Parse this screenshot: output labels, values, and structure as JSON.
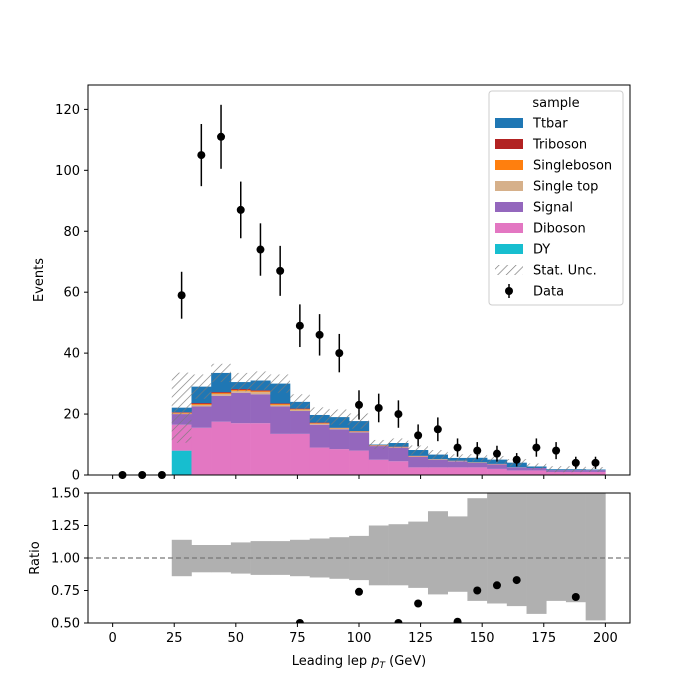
{
  "chart_data": [
    {
      "type": "bar",
      "panel": "main",
      "stacked": true,
      "histogram": true,
      "xlabel": "",
      "ylabel": "Events",
      "xlim": [
        -10,
        210
      ],
      "ylim": [
        0,
        128
      ],
      "yticks": [
        0,
        20,
        40,
        60,
        80,
        100,
        120
      ],
      "bin_edges": [
        24,
        32,
        40,
        48,
        56,
        64,
        72,
        80,
        88,
        96,
        104,
        112,
        120,
        128,
        136,
        144,
        152,
        160,
        168,
        176,
        184,
        192,
        200
      ],
      "series": [
        {
          "name": "DY",
          "color": "#17becf",
          "values": [
            8,
            0,
            0,
            0,
            0,
            0,
            0,
            0,
            0,
            0,
            0,
            0,
            0,
            0,
            0,
            0,
            0,
            0,
            0,
            0,
            0,
            0
          ]
        },
        {
          "name": "Diboson",
          "color": "#e377c2",
          "values": [
            8.5,
            15.5,
            17.5,
            17,
            17,
            13.5,
            13.5,
            9,
            8.5,
            8,
            5,
            4.5,
            2.5,
            2.5,
            2.5,
            2.5,
            2,
            1.5,
            1.5,
            1,
            1,
            1
          ]
        },
        {
          "name": "Signal",
          "color": "#9467bd",
          "values": [
            3.5,
            7,
            8.5,
            10,
            9.5,
            9,
            7.5,
            7.5,
            6.5,
            6,
            4.5,
            4.5,
            3.5,
            2.5,
            2,
            1.5,
            1.5,
            1,
            0.8,
            0.6,
            0.6,
            0.6
          ]
        },
        {
          "name": "Single top",
          "color": "#d6b08a",
          "values": [
            0.2,
            0.5,
            0.6,
            0.6,
            0.7,
            0.5,
            0.4,
            0.3,
            0.3,
            0.2,
            0.1,
            0.1,
            0.1,
            0.1,
            0.1,
            0.05,
            0.05,
            0.05,
            0,
            0,
            0,
            0
          ]
        },
        {
          "name": "Singleboson",
          "color": "#ff7f0e",
          "values": [
            0.2,
            0.3,
            0.3,
            0.3,
            0.3,
            0.3,
            0.2,
            0.2,
            0.1,
            0.1,
            0.1,
            0.1,
            0.1,
            0.05,
            0.05,
            0.05,
            0.05,
            0,
            0,
            0,
            0,
            0
          ]
        },
        {
          "name": "Triboson",
          "color": "#b22222",
          "values": [
            0.2,
            0.3,
            0.3,
            0.3,
            0.3,
            0.2,
            0.2,
            0.2,
            0.1,
            0.1,
            0.1,
            0.1,
            0.1,
            0.05,
            0.05,
            0.05,
            0.05,
            0,
            0,
            0,
            0,
            0
          ]
        },
        {
          "name": "Ttbar",
          "color": "#1f77b4",
          "values": [
            1.5,
            5.4,
            6.3,
            2.3,
            3.2,
            6.5,
            2.2,
            2.5,
            3.5,
            3.3,
            0.2,
            1.2,
            1.9,
            1.5,
            0.9,
            1.5,
            1.4,
            1.5,
            0.5,
            0.3,
            0.3,
            0.2
          ]
        }
      ],
      "stat_unc": {
        "name": "Stat. Unc.",
        "half_width": [
          11.5,
          4,
          3,
          3,
          3,
          3,
          2.5,
          2.5,
          2.5,
          2.5,
          1.5,
          1.5,
          1.5,
          1.5,
          1.2,
          1.2,
          1.2,
          1.2,
          1,
          1,
          1,
          0.8
        ]
      },
      "data": {
        "name": "Data",
        "x": [
          4,
          12,
          20,
          28,
          36,
          44,
          52,
          60,
          68,
          76,
          84,
          92,
          100,
          108,
          116,
          124,
          132,
          140,
          148,
          156,
          164,
          172,
          180,
          188,
          196
        ],
        "y": [
          0,
          0,
          0,
          59,
          105,
          111,
          87,
          74,
          67,
          49,
          46,
          40,
          23,
          22,
          20,
          13,
          15,
          9,
          8,
          7,
          5,
          9,
          8,
          4,
          4
        ],
        "err": [
          0,
          0,
          0,
          7.7,
          10.2,
          10.5,
          9.3,
          8.6,
          8.2,
          7,
          6.8,
          6.3,
          4.8,
          4.7,
          4.5,
          3.6,
          3.9,
          3,
          2.8,
          2.6,
          2.2,
          3,
          2.8,
          2,
          2
        ]
      },
      "legend": {
        "title": "sample",
        "placement": "top-right"
      }
    },
    {
      "type": "bar",
      "panel": "ratio",
      "xlabel": "Leading lep $p_T$ (GeV)",
      "ylabel": "Ratio",
      "xlim": [
        -10,
        210
      ],
      "ylim": [
        0.5,
        1.5
      ],
      "yticks": [
        "0.50",
        "0.75",
        "1.00",
        "1.25",
        "1.50"
      ],
      "xticks": [
        0,
        25,
        50,
        75,
        100,
        125,
        150,
        175,
        200
      ],
      "reference_line": 1.0,
      "band_color": "#b0b0b0",
      "bin_edges": [
        24,
        32,
        40,
        48,
        56,
        64,
        72,
        80,
        88,
        96,
        104,
        112,
        120,
        128,
        136,
        144,
        152,
        160,
        168,
        176,
        184,
        192,
        200
      ],
      "band_low": [
        0.86,
        0.89,
        0.89,
        0.88,
        0.87,
        0.87,
        0.86,
        0.85,
        0.84,
        0.83,
        0.79,
        0.79,
        0.77,
        0.72,
        0.74,
        0.67,
        0.65,
        0.63,
        0.57,
        0.67,
        0.66,
        0.52
      ],
      "band_high": [
        1.14,
        1.1,
        1.1,
        1.12,
        1.13,
        1.13,
        1.14,
        1.15,
        1.16,
        1.17,
        1.25,
        1.26,
        1.28,
        1.36,
        1.32,
        1.46,
        1.5,
        1.5,
        1.5,
        1.5,
        1.5,
        1.5
      ],
      "points": {
        "x": [
          76,
          100,
          116,
          124,
          140,
          148,
          156,
          164,
          188
        ],
        "y": [
          0.5,
          0.74,
          0.5,
          0.65,
          0.51,
          0.75,
          0.79,
          0.83,
          0.7
        ]
      }
    }
  ]
}
